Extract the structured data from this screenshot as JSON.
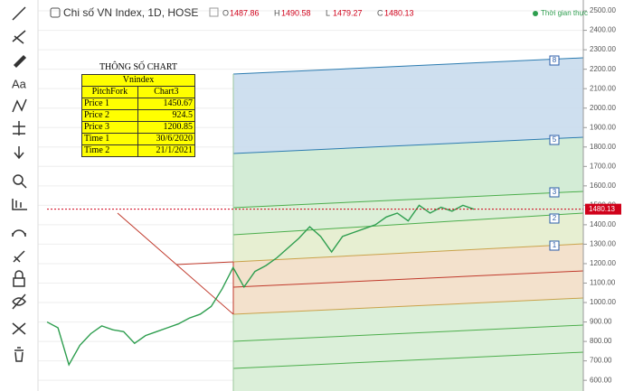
{
  "header": {
    "title": "Chi số VN Index, 1D, HOSE",
    "ohlc": [
      {
        "label": "O",
        "value": 1487.86
      },
      {
        "label": "H",
        "value": 1490.58
      },
      {
        "label": "L",
        "value": 1479.27
      },
      {
        "label": "C",
        "value": 1480.13
      }
    ]
  },
  "table": {
    "title": "THÔNG SỐ CHART",
    "caption": "Vnindex",
    "header": [
      "PitchFork",
      "Chart3"
    ],
    "rows": [
      [
        "Price 1",
        "1450.67"
      ],
      [
        "Price 2",
        "924.5"
      ],
      [
        "Price 3",
        "1200.85"
      ],
      [
        "Time 1",
        "30/6/2020"
      ],
      [
        "Time 2",
        "21/1/2021"
      ]
    ]
  },
  "chart_data": {
    "type": "line",
    "color": "#2e9e4f",
    "grid": true,
    "realtime_label": "Thời gian thực",
    "last_price": {
      "value": 1480.13,
      "label": "1480.13"
    },
    "pitchfork_labels": [
      "8",
      "5",
      "3",
      "2",
      "1"
    ],
    "values": [
      900,
      870,
      680,
      780,
      840,
      880,
      860,
      850,
      790,
      830,
      850,
      870,
      890,
      920,
      940,
      980,
      1070,
      1180,
      1080,
      1160,
      1190,
      1230,
      1280,
      1330,
      1390,
      1340,
      1260,
      1340,
      1360,
      1380,
      1400,
      1440,
      1460,
      1420,
      1500,
      1460,
      1490,
      1470,
      1500,
      1480
    ],
    "ylim": [
      545,
      2556
    ],
    "yticks": [
      {
        "value": 600,
        "label": "600.00"
      },
      {
        "value": 700,
        "label": "700.00"
      },
      {
        "value": 800,
        "label": "800.00"
      },
      {
        "value": 900,
        "label": "900.00"
      },
      {
        "value": 1000,
        "label": "1000.00"
      },
      {
        "value": 1100,
        "label": "1100.00"
      },
      {
        "value": 1200,
        "label": "1200.00"
      },
      {
        "value": 1300,
        "label": "1300.00"
      },
      {
        "value": 1400,
        "label": "1400.00"
      },
      {
        "value": 1500,
        "label": "1500.00"
      },
      {
        "value": 1600,
        "label": "1600.00"
      },
      {
        "value": 1700,
        "label": "1700.00"
      },
      {
        "value": 1800,
        "label": "1800.00"
      },
      {
        "value": 1900,
        "label": "1900.00"
      },
      {
        "value": 2000,
        "label": "2000.00"
      },
      {
        "value": 2100,
        "label": "2100.00"
      },
      {
        "value": 2200,
        "label": "2200.00"
      },
      {
        "value": 2300,
        "label": "2300.00"
      },
      {
        "value": 2400,
        "label": "2400.00"
      },
      {
        "value": 2500,
        "label": "2500.00"
      }
    ]
  }
}
